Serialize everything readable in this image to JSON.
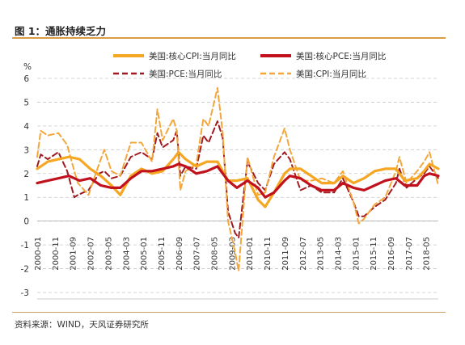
{
  "figure": {
    "title": "图 1：通胀持续乏力",
    "source": "资料来源：WIND，天风证券研究所"
  },
  "colors": {
    "core_cpi": "#f5a623",
    "core_pce": "#c0111d",
    "pce": "#a11a20",
    "cpi": "#f3a73a",
    "accent": "#d89c45"
  },
  "chart_data": {
    "type": "line",
    "ylabel": "%",
    "ylim": [
      -3,
      6
    ],
    "yticks": [
      "-3",
      "-2",
      "-1",
      "0",
      "1",
      "2",
      "3",
      "4",
      "5",
      "6"
    ],
    "x_tick_labels": [
      "2000-01",
      "2000-11",
      "2001-09",
      "2002-07",
      "2003-05",
      "2004-03",
      "2005-01",
      "2005-11",
      "2006-09",
      "2007-07",
      "2008-05",
      "2009-03",
      "2010-01",
      "2010-11",
      "2011-09",
      "2012-07",
      "2013-05",
      "2014-03",
      "2015-01",
      "2015-11",
      "2016-09",
      "2017-07",
      "2018-05"
    ],
    "x_start": "2000-01",
    "grid": true,
    "legend_position": "top",
    "series": [
      {
        "name": "美国:核心CPI:当月同比",
        "style": "solid",
        "anchors": [
          [
            "2000-01",
            2.2
          ],
          [
            "2000-07",
            2.5
          ],
          [
            "2001-01",
            2.6
          ],
          [
            "2001-07",
            2.7
          ],
          [
            "2002-01",
            2.6
          ],
          [
            "2002-07",
            2.2
          ],
          [
            "2003-01",
            1.9
          ],
          [
            "2003-07",
            1.5
          ],
          [
            "2003-12",
            1.1
          ],
          [
            "2004-06",
            1.9
          ],
          [
            "2004-12",
            2.2
          ],
          [
            "2005-06",
            2.0
          ],
          [
            "2005-12",
            2.1
          ],
          [
            "2006-06",
            2.6
          ],
          [
            "2006-09",
            2.9
          ],
          [
            "2007-01",
            2.6
          ],
          [
            "2007-07",
            2.3
          ],
          [
            "2008-01",
            2.5
          ],
          [
            "2008-07",
            2.5
          ],
          [
            "2009-01",
            1.7
          ],
          [
            "2009-06",
            1.7
          ],
          [
            "2009-12",
            1.8
          ],
          [
            "2010-06",
            0.9
          ],
          [
            "2010-10",
            0.6
          ],
          [
            "2011-03",
            1.2
          ],
          [
            "2011-09",
            2.0
          ],
          [
            "2011-12",
            2.2
          ],
          [
            "2012-06",
            2.2
          ],
          [
            "2012-12",
            1.9
          ],
          [
            "2013-06",
            1.6
          ],
          [
            "2014-01",
            1.6
          ],
          [
            "2014-06",
            1.9
          ],
          [
            "2014-12",
            1.6
          ],
          [
            "2015-06",
            1.8
          ],
          [
            "2015-12",
            2.1
          ],
          [
            "2016-06",
            2.2
          ],
          [
            "2016-12",
            2.2
          ],
          [
            "2017-05",
            1.7
          ],
          [
            "2017-12",
            1.8
          ],
          [
            "2018-04",
            2.1
          ],
          [
            "2018-07",
            2.4
          ],
          [
            "2018-12",
            2.2
          ]
        ]
      },
      {
        "name": "美国:核心PCE:当月同比",
        "style": "solid",
        "anchors": [
          [
            "2000-01",
            1.6
          ],
          [
            "2000-07",
            1.7
          ],
          [
            "2001-01",
            1.8
          ],
          [
            "2001-07",
            1.9
          ],
          [
            "2002-01",
            1.7
          ],
          [
            "2002-07",
            1.8
          ],
          [
            "2003-01",
            1.5
          ],
          [
            "2003-07",
            1.4
          ],
          [
            "2003-12",
            1.4
          ],
          [
            "2004-06",
            1.8
          ],
          [
            "2004-12",
            2.1
          ],
          [
            "2005-06",
            2.1
          ],
          [
            "2005-12",
            2.2
          ],
          [
            "2006-06",
            2.3
          ],
          [
            "2006-09",
            2.4
          ],
          [
            "2007-01",
            2.3
          ],
          [
            "2007-07",
            2.0
          ],
          [
            "2008-01",
            2.1
          ],
          [
            "2008-07",
            2.3
          ],
          [
            "2009-01",
            1.7
          ],
          [
            "2009-06",
            1.4
          ],
          [
            "2009-12",
            1.7
          ],
          [
            "2010-06",
            1.4
          ],
          [
            "2010-10",
            1.0
          ],
          [
            "2011-03",
            1.2
          ],
          [
            "2011-09",
            1.7
          ],
          [
            "2011-12",
            1.9
          ],
          [
            "2012-06",
            1.8
          ],
          [
            "2012-12",
            1.5
          ],
          [
            "2013-06",
            1.3
          ],
          [
            "2014-01",
            1.3
          ],
          [
            "2014-06",
            1.6
          ],
          [
            "2014-12",
            1.4
          ],
          [
            "2015-06",
            1.3
          ],
          [
            "2015-12",
            1.5
          ],
          [
            "2016-06",
            1.7
          ],
          [
            "2016-12",
            1.8
          ],
          [
            "2017-05",
            1.5
          ],
          [
            "2017-12",
            1.5
          ],
          [
            "2018-04",
            1.9
          ],
          [
            "2018-07",
            2.0
          ],
          [
            "2018-12",
            1.9
          ]
        ]
      },
      {
        "name": "美国:PCE:当月同比",
        "style": "dashed",
        "anchors": [
          [
            "2000-01",
            2.3
          ],
          [
            "2000-03",
            2.8
          ],
          [
            "2000-07",
            2.6
          ],
          [
            "2001-01",
            2.9
          ],
          [
            "2001-06",
            2.1
          ],
          [
            "2001-10",
            1.0
          ],
          [
            "2001-12",
            1.1
          ],
          [
            "2002-06",
            1.3
          ],
          [
            "2002-12",
            2.0
          ],
          [
            "2003-03",
            2.1
          ],
          [
            "2003-07",
            1.8
          ],
          [
            "2003-12",
            1.9
          ],
          [
            "2004-06",
            2.7
          ],
          [
            "2004-12",
            2.9
          ],
          [
            "2005-06",
            2.6
          ],
          [
            "2005-09",
            3.7
          ],
          [
            "2005-12",
            3.1
          ],
          [
            "2006-06",
            3.4
          ],
          [
            "2006-08",
            3.8
          ],
          [
            "2006-10",
            1.9
          ],
          [
            "2007-01",
            2.3
          ],
          [
            "2007-07",
            2.2
          ],
          [
            "2007-11",
            3.6
          ],
          [
            "2008-02",
            3.3
          ],
          [
            "2008-07",
            4.2
          ],
          [
            "2008-10",
            3.5
          ],
          [
            "2009-01",
            0.4
          ],
          [
            "2009-05",
            -0.5
          ],
          [
            "2009-07",
            -0.7
          ],
          [
            "2009-12",
            2.5
          ],
          [
            "2010-06",
            1.6
          ],
          [
            "2010-10",
            1.3
          ],
          [
            "2011-03",
            2.4
          ],
          [
            "2011-09",
            2.9
          ],
          [
            "2011-12",
            2.6
          ],
          [
            "2012-06",
            1.3
          ],
          [
            "2012-12",
            1.5
          ],
          [
            "2013-06",
            1.2
          ],
          [
            "2014-01",
            1.2
          ],
          [
            "2014-06",
            1.8
          ],
          [
            "2014-12",
            0.8
          ],
          [
            "2015-03",
            0.2
          ],
          [
            "2015-06",
            0.2
          ],
          [
            "2015-12",
            0.6
          ],
          [
            "2016-06",
            0.9
          ],
          [
            "2016-12",
            1.6
          ],
          [
            "2017-02",
            2.2
          ],
          [
            "2017-06",
            1.4
          ],
          [
            "2017-12",
            1.8
          ],
          [
            "2018-04",
            2.0
          ],
          [
            "2018-07",
            2.3
          ],
          [
            "2018-12",
            1.8
          ]
        ]
      },
      {
        "name": "美国:CPI:当月同比",
        "style": "dashed",
        "anchors": [
          [
            "2000-01",
            2.7
          ],
          [
            "2000-03",
            3.8
          ],
          [
            "2000-07",
            3.6
          ],
          [
            "2001-01",
            3.7
          ],
          [
            "2001-06",
            3.2
          ],
          [
            "2001-10",
            2.1
          ],
          [
            "2001-12",
            1.6
          ],
          [
            "2002-06",
            1.1
          ],
          [
            "2002-12",
            2.4
          ],
          [
            "2003-03",
            3.0
          ],
          [
            "2003-07",
            2.1
          ],
          [
            "2003-12",
            1.9
          ],
          [
            "2004-06",
            3.3
          ],
          [
            "2004-12",
            3.3
          ],
          [
            "2005-06",
            2.5
          ],
          [
            "2005-09",
            4.7
          ],
          [
            "2005-12",
            3.4
          ],
          [
            "2006-06",
            4.3
          ],
          [
            "2006-08",
            3.8
          ],
          [
            "2006-10",
            1.3
          ],
          [
            "2007-01",
            2.1
          ],
          [
            "2007-07",
            2.4
          ],
          [
            "2007-11",
            4.3
          ],
          [
            "2008-02",
            4.0
          ],
          [
            "2008-07",
            5.6
          ],
          [
            "2008-10",
            3.7
          ],
          [
            "2009-01",
            0.0
          ],
          [
            "2009-05",
            -1.3
          ],
          [
            "2009-07",
            -2.1
          ],
          [
            "2009-12",
            2.7
          ],
          [
            "2010-06",
            1.1
          ],
          [
            "2010-10",
            1.2
          ],
          [
            "2011-03",
            2.7
          ],
          [
            "2011-09",
            3.9
          ],
          [
            "2011-12",
            3.0
          ],
          [
            "2012-06",
            1.7
          ],
          [
            "2012-12",
            1.7
          ],
          [
            "2013-06",
            1.8
          ],
          [
            "2014-01",
            1.6
          ],
          [
            "2014-06",
            2.1
          ],
          [
            "2014-12",
            0.8
          ],
          [
            "2015-03",
            -0.1
          ],
          [
            "2015-06",
            0.1
          ],
          [
            "2015-12",
            0.7
          ],
          [
            "2016-06",
            1.0
          ],
          [
            "2016-12",
            2.1
          ],
          [
            "2017-02",
            2.7
          ],
          [
            "2017-06",
            1.6
          ],
          [
            "2017-12",
            2.1
          ],
          [
            "2018-04",
            2.5
          ],
          [
            "2018-07",
            2.9
          ],
          [
            "2018-12",
            1.5
          ]
        ]
      }
    ]
  }
}
